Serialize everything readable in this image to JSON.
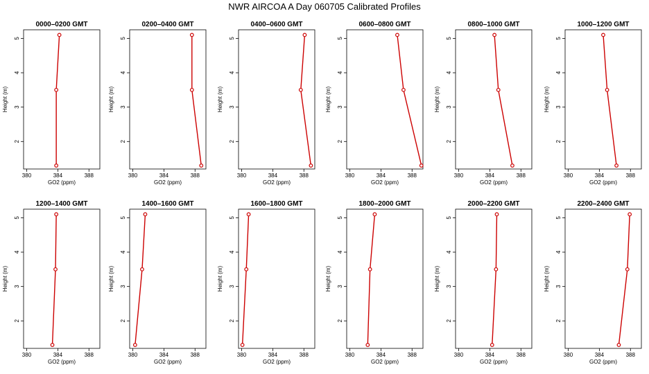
{
  "title": "NWR AIRCOA A  Day 060705  Calibrated Profiles",
  "style": {
    "line_color": "#cc0000",
    "axis_color": "#000000"
  },
  "chart_data": [
    {
      "type": "line",
      "title": "0000–0200 GMT",
      "xlabel": "GO2 (ppm)",
      "ylabel": "Height (m)",
      "xlim": [
        379.6,
        389.4
      ],
      "ylim": [
        1.2,
        5.25
      ],
      "xticks": [
        380,
        384,
        388
      ],
      "yticks": [
        2,
        3,
        4,
        5
      ],
      "series": [
        {
          "x": [
            383.8,
            383.8,
            384.2
          ],
          "y": [
            1.3,
            3.5,
            5.1
          ]
        }
      ]
    },
    {
      "type": "line",
      "title": "0200–0400 GMT",
      "xlabel": "GO2 (ppm)",
      "ylabel": "Height (m)",
      "xlim": [
        379.6,
        389.4
      ],
      "ylim": [
        1.2,
        5.25
      ],
      "xticks": [
        380,
        384,
        388
      ],
      "yticks": [
        2,
        3,
        4,
        5
      ],
      "series": [
        {
          "x": [
            388.8,
            387.6,
            387.6
          ],
          "y": [
            1.3,
            3.5,
            5.1
          ]
        }
      ]
    },
    {
      "type": "line",
      "title": "0400–0600 GMT",
      "xlabel": "GO2 (ppm)",
      "ylabel": "Height (m)",
      "xlim": [
        379.6,
        389.4
      ],
      "ylim": [
        1.2,
        5.25
      ],
      "xticks": [
        380,
        384,
        388
      ],
      "yticks": [
        2,
        3,
        4,
        5
      ],
      "series": [
        {
          "x": [
            388.9,
            387.6,
            388.1
          ],
          "y": [
            1.3,
            3.5,
            5.1
          ]
        }
      ]
    },
    {
      "type": "line",
      "title": "0600–0800 GMT",
      "xlabel": "GO2 (ppm)",
      "ylabel": "Height (m)",
      "xlim": [
        379.6,
        389.4
      ],
      "ylim": [
        1.2,
        5.25
      ],
      "xticks": [
        380,
        384,
        388
      ],
      "yticks": [
        2,
        3,
        4,
        5
      ],
      "series": [
        {
          "x": [
            389.2,
            386.9,
            386.1
          ],
          "y": [
            1.3,
            3.5,
            5.1
          ]
        }
      ]
    },
    {
      "type": "line",
      "title": "0800–1000 GMT",
      "xlabel": "GO2 (ppm)",
      "ylabel": "Height (m)",
      "xlim": [
        379.6,
        389.4
      ],
      "ylim": [
        1.2,
        5.25
      ],
      "xticks": [
        380,
        384,
        388
      ],
      "yticks": [
        2,
        3,
        4,
        5
      ],
      "series": [
        {
          "x": [
            386.9,
            385.1,
            384.6
          ],
          "y": [
            1.3,
            3.5,
            5.1
          ]
        }
      ]
    },
    {
      "type": "line",
      "title": "1000–1200 GMT",
      "xlabel": "GO2 (ppm)",
      "ylabel": "Height (m)",
      "xlim": [
        379.6,
        389.4
      ],
      "ylim": [
        1.2,
        5.25
      ],
      "xticks": [
        380,
        384,
        388
      ],
      "yticks": [
        2,
        3,
        4,
        5
      ],
      "series": [
        {
          "x": [
            386.2,
            385.0,
            384.5
          ],
          "y": [
            1.3,
            3.5,
            5.1
          ]
        }
      ]
    },
    {
      "type": "line",
      "title": "1200–1400 GMT",
      "xlabel": "GO2 (ppm)",
      "ylabel": "Height (m)",
      "xlim": [
        379.6,
        389.4
      ],
      "ylim": [
        1.2,
        5.25
      ],
      "xticks": [
        380,
        384,
        388
      ],
      "yticks": [
        2,
        3,
        4,
        5
      ],
      "series": [
        {
          "x": [
            383.3,
            383.7,
            383.8
          ],
          "y": [
            1.3,
            3.5,
            5.1
          ]
        }
      ]
    },
    {
      "type": "line",
      "title": "1400–1600 GMT",
      "xlabel": "GO2 (ppm)",
      "ylabel": "Height (m)",
      "xlim": [
        379.6,
        389.4
      ],
      "ylim": [
        1.2,
        5.25
      ],
      "xticks": [
        380,
        384,
        388
      ],
      "yticks": [
        2,
        3,
        4,
        5
      ],
      "series": [
        {
          "x": [
            380.3,
            381.2,
            381.6
          ],
          "y": [
            1.3,
            3.5,
            5.1
          ]
        }
      ]
    },
    {
      "type": "line",
      "title": "1600–1800 GMT",
      "xlabel": "GO2 (ppm)",
      "ylabel": "Height (m)",
      "xlim": [
        379.6,
        389.4
      ],
      "ylim": [
        1.2,
        5.25
      ],
      "xticks": [
        380,
        384,
        388
      ],
      "yticks": [
        2,
        3,
        4,
        5
      ],
      "series": [
        {
          "x": [
            380.1,
            380.6,
            380.9
          ],
          "y": [
            1.3,
            3.5,
            5.1
          ]
        }
      ]
    },
    {
      "type": "line",
      "title": "1800–2000 GMT",
      "xlabel": "GO2 (ppm)",
      "ylabel": "Height (m)",
      "xlim": [
        379.6,
        389.4
      ],
      "ylim": [
        1.2,
        5.25
      ],
      "xticks": [
        380,
        384,
        388
      ],
      "yticks": [
        2,
        3,
        4,
        5
      ],
      "series": [
        {
          "x": [
            382.3,
            382.6,
            383.2
          ],
          "y": [
            1.3,
            3.5,
            5.1
          ]
        }
      ]
    },
    {
      "type": "line",
      "title": "2000–2200 GMT",
      "xlabel": "GO2 (ppm)",
      "ylabel": "Height (m)",
      "xlim": [
        379.6,
        389.4
      ],
      "ylim": [
        1.2,
        5.25
      ],
      "xticks": [
        380,
        384,
        388
      ],
      "yticks": [
        2,
        3,
        4,
        5
      ],
      "series": [
        {
          "x": [
            384.3,
            384.8,
            384.9
          ],
          "y": [
            1.3,
            3.5,
            5.1
          ]
        }
      ]
    },
    {
      "type": "line",
      "title": "2200–2400 GMT",
      "xlabel": "GO2 (ppm)",
      "ylabel": "Height (m)",
      "xlim": [
        379.6,
        389.4
      ],
      "ylim": [
        1.2,
        5.25
      ],
      "xticks": [
        380,
        384,
        388
      ],
      "yticks": [
        2,
        3,
        4,
        5
      ],
      "series": [
        {
          "x": [
            386.5,
            387.6,
            387.9
          ],
          "y": [
            1.3,
            3.5,
            5.1
          ]
        }
      ]
    }
  ]
}
